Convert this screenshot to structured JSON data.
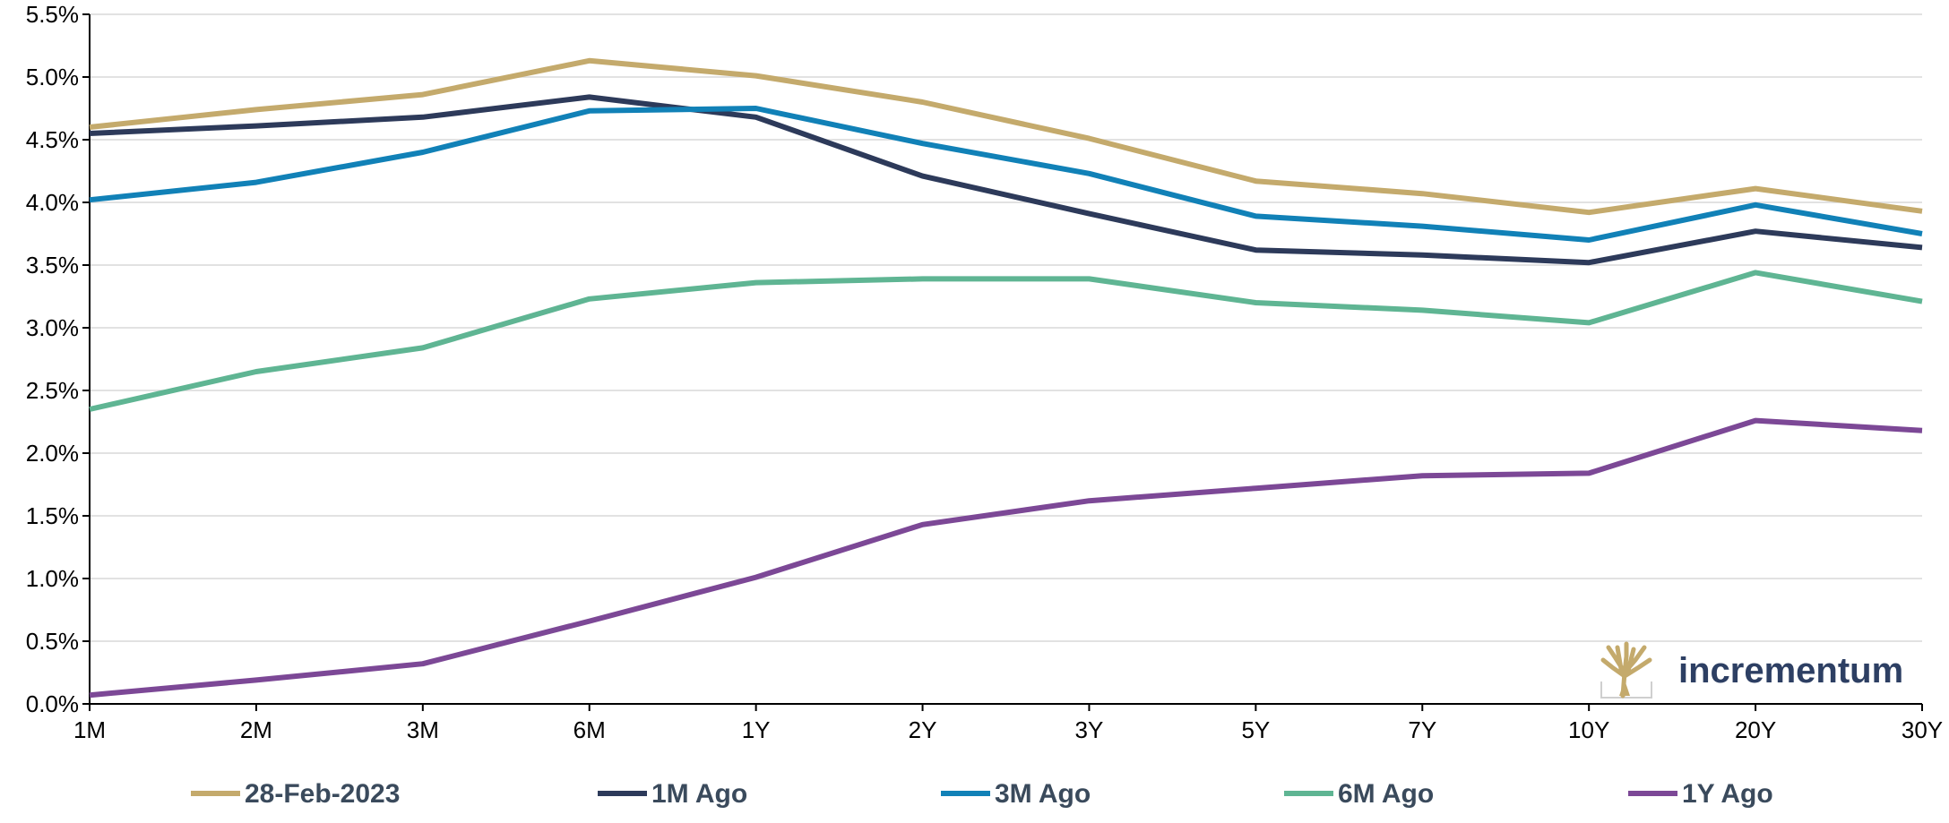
{
  "chart_data": {
    "type": "line",
    "title": "",
    "xlabel": "",
    "ylabel": "",
    "categories": [
      "1M",
      "2M",
      "3M",
      "6M",
      "1Y",
      "2Y",
      "3Y",
      "5Y",
      "7Y",
      "10Y",
      "20Y",
      "30Y"
    ],
    "ylim": [
      0,
      5.5
    ],
    "yticks": [
      0,
      0.5,
      1.0,
      1.5,
      2.0,
      2.5,
      3.0,
      3.5,
      4.0,
      4.5,
      5.0,
      5.5
    ],
    "ytick_labels": [
      "0.0%",
      "0.5%",
      "1.0%",
      "1.5%",
      "2.0%",
      "2.5%",
      "3.0%",
      "3.5%",
      "4.0%",
      "4.5%",
      "5.0%",
      "5.5%"
    ],
    "grid": "horizontal",
    "legend_position": "bottom",
    "series": [
      {
        "name": "28-Feb-2023",
        "color": "#c4aa6c",
        "values": [
          4.6,
          4.74,
          4.86,
          5.13,
          5.01,
          4.8,
          4.51,
          4.17,
          4.07,
          3.92,
          4.11,
          3.93
        ]
      },
      {
        "name": "1M Ago",
        "color": "#2d3a5a",
        "values": [
          4.55,
          4.61,
          4.68,
          4.84,
          4.68,
          4.21,
          3.91,
          3.62,
          3.58,
          3.52,
          3.77,
          3.64
        ]
      },
      {
        "name": "3M Ago",
        "color": "#1181b7",
        "values": [
          4.02,
          4.16,
          4.4,
          4.73,
          4.75,
          4.47,
          4.23,
          3.89,
          3.81,
          3.7,
          3.98,
          3.75
        ]
      },
      {
        "name": "6M Ago",
        "color": "#5fb593",
        "values": [
          2.35,
          2.65,
          2.84,
          3.23,
          3.36,
          3.39,
          3.39,
          3.2,
          3.14,
          3.04,
          3.44,
          3.21
        ]
      },
      {
        "name": "1Y Ago",
        "color": "#7c4896",
        "values": [
          0.07,
          0.19,
          0.32,
          0.66,
          1.01,
          1.43,
          1.62,
          1.72,
          1.82,
          1.84,
          2.26,
          2.18
        ]
      }
    ]
  },
  "logo": {
    "text": "incrementum",
    "icon": "tree-icon",
    "colors": {
      "icon": "#c4aa6c",
      "text": "#2d3f63"
    }
  }
}
